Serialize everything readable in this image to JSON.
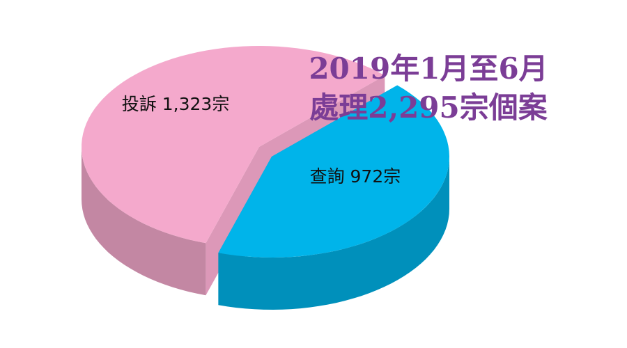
{
  "chart_data": {
    "type": "pie3d",
    "title": "2019年1月至6月",
    "subtitle": "處理2,295宗個案",
    "categories": [
      "投訴",
      "查詢"
    ],
    "values": [
      1323,
      972
    ],
    "value_labels": [
      "1,323宗",
      "972宗"
    ],
    "colors": [
      "#f4a9cc",
      "#00b4ea"
    ],
    "title_color": "#7b3d96"
  }
}
